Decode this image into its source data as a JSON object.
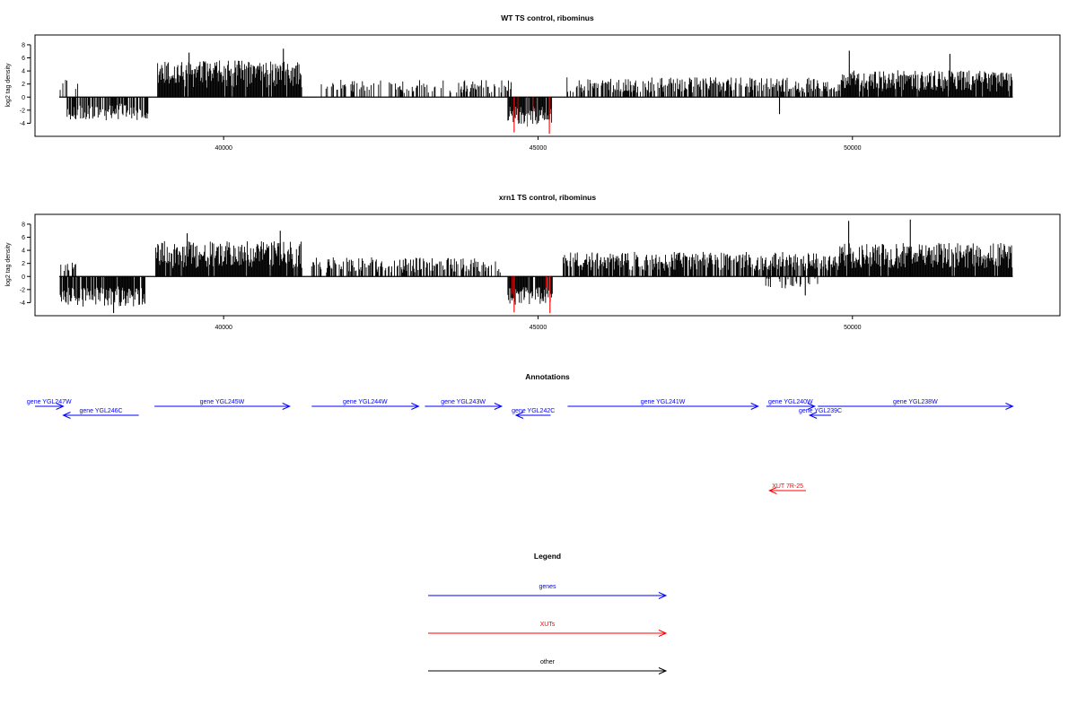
{
  "chart_data": [
    {
      "type": "bar",
      "title": "WT TS control, ribominus",
      "ylabel": "log2 tag density",
      "xlim": [
        37000,
        53300
      ],
      "ylim": [
        -6,
        9.5
      ],
      "x_ticks": [
        40000,
        45000,
        50000
      ],
      "y_ticks": [
        -4,
        -2,
        0,
        2,
        4,
        6,
        8
      ],
      "series_color": "#000000",
      "highlight_color": "#ff0000",
      "segments": [
        {
          "x0": 37400,
          "x1": 37700,
          "sign": 1,
          "base": 1.8,
          "amp": 1.6,
          "density": 0.25
        },
        {
          "x0": 37500,
          "x1": 38800,
          "sign": -1,
          "base": 1.9,
          "amp": 2.0,
          "density": 0.7
        },
        {
          "x0": 38950,
          "x1": 41250,
          "sign": 1,
          "base": 2.9,
          "amp": 3.2,
          "density": 0.95
        },
        {
          "x0": 41500,
          "x1": 44600,
          "sign": 1,
          "base": 1.3,
          "amp": 1.6,
          "density": 0.35
        },
        {
          "x0": 44520,
          "x1": 45220,
          "sign": -1,
          "base": 2.3,
          "amp": 2.2,
          "density": 0.9
        },
        {
          "x0": 45450,
          "x1": 49800,
          "sign": 1,
          "base": 1.5,
          "amp": 1.8,
          "density": 0.6
        },
        {
          "x0": 49800,
          "x1": 52550,
          "sign": 1,
          "base": 2.0,
          "amp": 2.5,
          "density": 0.95
        }
      ],
      "spikes": [
        {
          "x": 40950,
          "y": 7.4
        },
        {
          "x": 39450,
          "y": 6.8
        },
        {
          "x": 49950,
          "y": 7.1
        },
        {
          "x": 51550,
          "y": 6.6
        },
        {
          "x": 44620,
          "y": -5.4,
          "highlight": true
        },
        {
          "x": 45180,
          "y": -5.6,
          "highlight": true
        },
        {
          "x": 48840,
          "y": -2.6
        }
      ]
    },
    {
      "type": "bar",
      "title": "xrn1 TS control, ribominus",
      "ylabel": "log2 tag density",
      "xlim": [
        37000,
        53300
      ],
      "ylim": [
        -6,
        9.5
      ],
      "x_ticks": [
        40000,
        45000,
        50000
      ],
      "y_ticks": [
        -4,
        -2,
        0,
        2,
        4,
        6,
        8
      ],
      "series_color": "#000000",
      "highlight_color": "#ff0000",
      "segments": [
        {
          "x0": 37400,
          "x1": 37650,
          "sign": 1,
          "base": 1.2,
          "amp": 1.5,
          "density": 0.4
        },
        {
          "x0": 37400,
          "x1": 38750,
          "sign": -1,
          "base": 2.6,
          "amp": 2.4,
          "density": 0.85
        },
        {
          "x0": 38920,
          "x1": 41250,
          "sign": 1,
          "base": 2.7,
          "amp": 3.2,
          "density": 0.95
        },
        {
          "x0": 41400,
          "x1": 44400,
          "sign": 1,
          "base": 1.4,
          "amp": 1.8,
          "density": 0.55
        },
        {
          "x0": 44520,
          "x1": 45230,
          "sign": -1,
          "base": 2.6,
          "amp": 2.1,
          "density": 0.9
        },
        {
          "x0": 45400,
          "x1": 49800,
          "sign": 1,
          "base": 1.9,
          "amp": 2.2,
          "density": 0.8
        },
        {
          "x0": 48600,
          "x1": 49450,
          "sign": -1,
          "base": 0.9,
          "amp": 1.4,
          "density": 0.25
        },
        {
          "x0": 49800,
          "x1": 52550,
          "sign": 1,
          "base": 2.6,
          "amp": 3.0,
          "density": 0.98
        }
      ],
      "spikes": [
        {
          "x": 49940,
          "y": 8.5
        },
        {
          "x": 50920,
          "y": 8.7
        },
        {
          "x": 40900,
          "y": 7.0
        },
        {
          "x": 39420,
          "y": 6.6
        },
        {
          "x": 38250,
          "y": -5.6
        },
        {
          "x": 44620,
          "y": -5.5,
          "highlight": true
        },
        {
          "x": 45190,
          "y": -5.6,
          "highlight": true
        },
        {
          "x": 49250,
          "y": -2.9
        }
      ]
    }
  ],
  "annotations": {
    "title": "Annotations",
    "features": [
      {
        "label": "gene YGL247W",
        "x0": 37000,
        "x1": 37450,
        "row": 0,
        "dir": "right",
        "color": "#0000ff"
      },
      {
        "label": "gene YGL246C",
        "x0": 37450,
        "x1": 38650,
        "row": 1,
        "dir": "left",
        "color": "#0000ff"
      },
      {
        "label": "gene YGL245W",
        "x0": 38900,
        "x1": 41050,
        "row": 0,
        "dir": "right",
        "color": "#0000ff"
      },
      {
        "label": "gene YGL244W",
        "x0": 41400,
        "x1": 43100,
        "row": 0,
        "dir": "right",
        "color": "#0000ff"
      },
      {
        "label": "gene YGL243W",
        "x0": 43200,
        "x1": 44420,
        "row": 0,
        "dir": "right",
        "color": "#0000ff"
      },
      {
        "label": "gene YGL242C",
        "x0": 44650,
        "x1": 45200,
        "row": 1,
        "dir": "left",
        "color": "#0000ff"
      },
      {
        "label": "gene YGL241W",
        "x0": 45470,
        "x1": 48500,
        "row": 0,
        "dir": "right",
        "color": "#0000ff"
      },
      {
        "label": "gene YGL240W",
        "x0": 48630,
        "x1": 49400,
        "row": 0,
        "dir": "right",
        "color": "#0000ff"
      },
      {
        "label": "gene YGL239C",
        "x0": 49320,
        "x1": 49660,
        "row": 1,
        "dir": "left",
        "color": "#0000ff"
      },
      {
        "label": "gene YGL238W",
        "x0": 49450,
        "x1": 52550,
        "row": 0,
        "dir": "right",
        "color": "#0000ff"
      },
      {
        "label": "XUT 7R-25",
        "x0": 48680,
        "x1": 49260,
        "row": 2,
        "dir": "left",
        "color": "#ff0000"
      }
    ]
  },
  "legend": {
    "title": "Legend",
    "items": [
      {
        "label": "genes",
        "color": "#0000ff"
      },
      {
        "label": "XUTs",
        "color": "#ff0000"
      },
      {
        "label": "other",
        "color": "#000000"
      }
    ]
  }
}
